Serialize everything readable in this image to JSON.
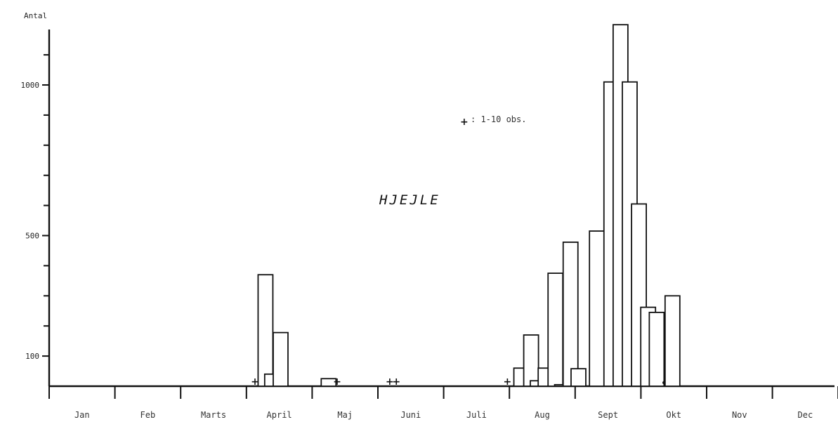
{
  "chart_data": {
    "type": "bar",
    "title": "HJEJLE",
    "ylabel": "Antal",
    "ylim": [
      0,
      1200
    ],
    "y_ticks": [
      {
        "value": 100,
        "label": "100"
      },
      {
        "value": 500,
        "label": "500"
      },
      {
        "value": 1000,
        "label": "1000"
      }
    ],
    "y_minor_ticks": [
      200,
      300,
      400,
      600,
      700,
      800,
      900,
      1100
    ],
    "months": [
      "Jan",
      "Feb",
      "Marts",
      "April",
      "Maj",
      "Juni",
      "Juli",
      "Aug",
      "Sept",
      "Okt",
      "Nov",
      "Dec"
    ],
    "legend": {
      "symbol": "+",
      "text": ": 1-10 obs."
    },
    "bars": [
      {
        "month_pos": 3.29,
        "value": 370
      },
      {
        "month_pos": 3.39,
        "value": 40
      },
      {
        "month_pos": 3.52,
        "value": 178
      },
      {
        "month_pos": 4.25,
        "value": 25
      },
      {
        "month_pos": 7.18,
        "value": 60
      },
      {
        "month_pos": 7.33,
        "value": 170
      },
      {
        "month_pos": 7.43,
        "value": 18
      },
      {
        "month_pos": 7.55,
        "value": 60
      },
      {
        "month_pos": 7.7,
        "value": 375
      },
      {
        "month_pos": 7.8,
        "value": 5
      },
      {
        "month_pos": 7.93,
        "value": 478
      },
      {
        "month_pos": 8.05,
        "value": 58
      },
      {
        "month_pos": 8.33,
        "value": 515
      },
      {
        "month_pos": 8.55,
        "value": 1010
      },
      {
        "month_pos": 8.69,
        "value": 1200
      },
      {
        "month_pos": 8.83,
        "value": 1010
      },
      {
        "month_pos": 8.97,
        "value": 605
      },
      {
        "month_pos": 9.11,
        "value": 262
      },
      {
        "month_pos": 9.24,
        "value": 245
      },
      {
        "month_pos": 9.48,
        "value": 300
      }
    ],
    "low_count_marks": [
      {
        "month_pos": 3.13,
        "symbol": "+"
      },
      {
        "month_pos": 4.38,
        "symbol": "+"
      },
      {
        "month_pos": 5.18,
        "symbol": "+"
      },
      {
        "month_pos": 5.28,
        "symbol": "+"
      },
      {
        "month_pos": 6.97,
        "symbol": "+"
      },
      {
        "month_pos": 9.35,
        "symbol": "•"
      }
    ]
  }
}
